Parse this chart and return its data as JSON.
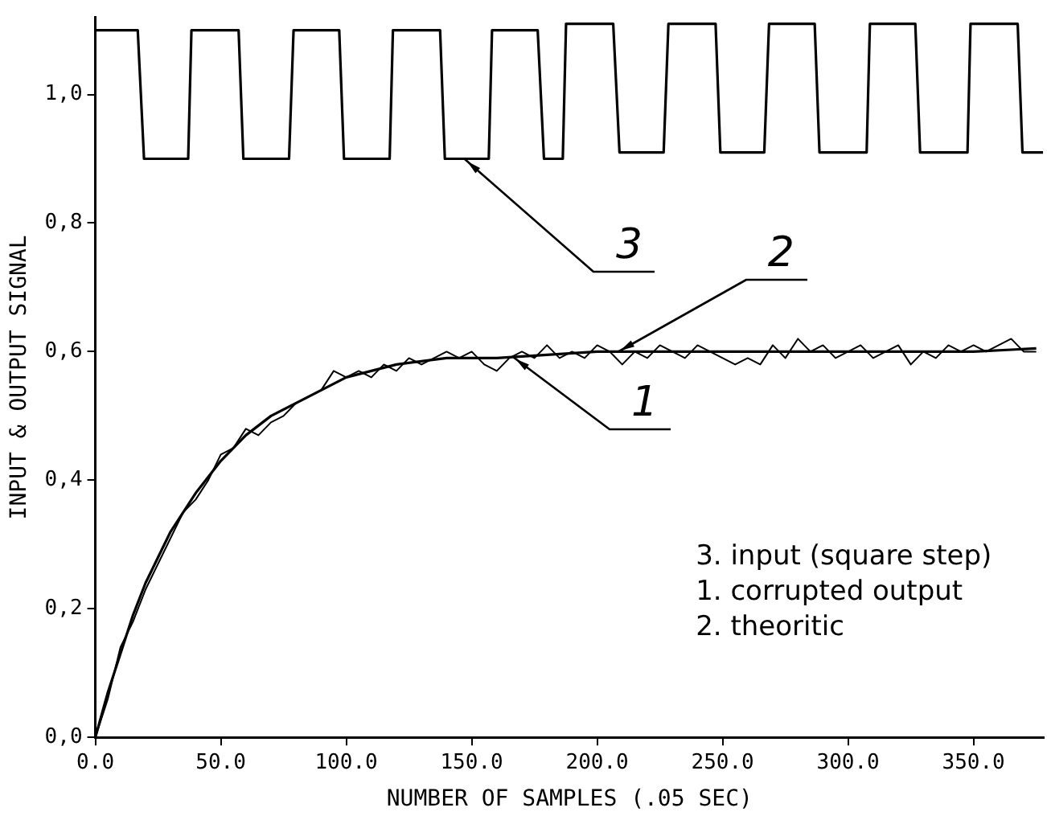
{
  "chart_data": {
    "type": "line",
    "xlabel": "NUMBER OF SAMPLES (.05 SEC)",
    "ylabel": "INPUT & OUTPUT SIGNAL",
    "xlim": [
      0,
      378
    ],
    "ylim": [
      0,
      1.12
    ],
    "xticks": [
      {
        "value": 0,
        "label": "0.0"
      },
      {
        "value": 50,
        "label": "50.0"
      },
      {
        "value": 100,
        "label": "100.0"
      },
      {
        "value": 150,
        "label": "150.0"
      },
      {
        "value": 200,
        "label": "200.0"
      },
      {
        "value": 250,
        "label": "250.0"
      },
      {
        "value": 300,
        "label": "300.0"
      },
      {
        "value": 350,
        "label": "350.0"
      }
    ],
    "yticks": [
      {
        "value": 0,
        "label": "0,0"
      },
      {
        "value": 0.2,
        "label": "0,2"
      },
      {
        "value": 0.4,
        "label": "0,4"
      },
      {
        "value": 0.6,
        "label": "0,6"
      },
      {
        "value": 0.8,
        "label": "0,8"
      },
      {
        "value": 1.0,
        "label": "1,0"
      }
    ],
    "grid": false,
    "legend": "right",
    "marker": "none",
    "line_style": "solid",
    "series": [
      {
        "name": "3",
        "color": "#000000",
        "x": [
          0,
          16.9,
          19.4,
          37.0,
          38.3,
          57.1,
          59.0,
          77.2,
          79.0,
          97.2,
          99.1,
          117.3,
          118.6,
          137.4,
          139.3,
          156.8,
          158.1,
          176.3,
          178.8,
          186.3,
          187.6,
          206.4,
          208.9,
          226.5,
          228.4,
          247.2,
          249.1,
          266.6,
          268.5,
          286.7,
          288.6,
          307.4,
          308.7,
          326.8,
          328.7,
          347.6,
          348.8,
          367.6,
          369.5,
          377.7
        ],
        "values": [
          1.1,
          1.1,
          0.9,
          0.9,
          1.1,
          1.1,
          0.9,
          0.9,
          1.1,
          1.1,
          0.9,
          0.9,
          1.1,
          1.1,
          0.9,
          0.9,
          1.1,
          1.1,
          0.9,
          0.9,
          1.11,
          1.11,
          0.91,
          0.91,
          1.11,
          1.11,
          0.91,
          0.91,
          1.11,
          1.11,
          0.91,
          0.91,
          1.11,
          1.11,
          0.91,
          0.91,
          1.11,
          1.11,
          0.91,
          0.91
        ]
      },
      {
        "name": "1",
        "color": "#000000",
        "x": [
          0,
          5,
          10,
          15,
          20,
          25,
          30,
          35,
          40,
          45,
          50,
          55,
          60,
          65,
          70,
          75,
          80,
          85,
          90,
          95,
          100,
          105,
          110,
          115,
          120,
          125,
          130,
          135,
          140,
          145,
          150,
          155,
          160,
          165,
          170,
          175,
          180,
          185,
          190,
          195,
          200,
          205,
          210,
          215,
          220,
          225,
          230,
          235,
          240,
          245,
          250,
          255,
          260,
          265,
          270,
          275,
          280,
          285,
          290,
          295,
          300,
          305,
          310,
          315,
          320,
          325,
          330,
          335,
          340,
          345,
          350,
          355,
          360,
          365,
          370,
          375
        ],
        "values": [
          0,
          0.06,
          0.14,
          0.18,
          0.23,
          0.27,
          0.31,
          0.35,
          0.37,
          0.4,
          0.44,
          0.45,
          0.48,
          0.47,
          0.49,
          0.5,
          0.52,
          0.53,
          0.54,
          0.57,
          0.56,
          0.57,
          0.56,
          0.58,
          0.57,
          0.59,
          0.58,
          0.59,
          0.6,
          0.59,
          0.6,
          0.58,
          0.57,
          0.59,
          0.6,
          0.59,
          0.61,
          0.59,
          0.6,
          0.59,
          0.61,
          0.6,
          0.58,
          0.6,
          0.59,
          0.61,
          0.6,
          0.59,
          0.61,
          0.6,
          0.59,
          0.58,
          0.59,
          0.58,
          0.61,
          0.59,
          0.62,
          0.6,
          0.61,
          0.59,
          0.6,
          0.61,
          0.59,
          0.6,
          0.61,
          0.58,
          0.6,
          0.59,
          0.61,
          0.6,
          0.61,
          0.6,
          0.61,
          0.62,
          0.6,
          0.6
        ]
      },
      {
        "name": "2",
        "color": "#000000",
        "x": [
          0,
          5,
          10,
          15,
          20,
          25,
          30,
          40,
          50,
          60,
          70,
          80,
          90,
          100,
          120,
          140,
          160,
          180,
          200,
          250,
          300,
          350,
          375
        ],
        "values": [
          0,
          0.07,
          0.13,
          0.19,
          0.24,
          0.28,
          0.32,
          0.38,
          0.43,
          0.47,
          0.5,
          0.52,
          0.54,
          0.56,
          0.58,
          0.59,
          0.59,
          0.595,
          0.6,
          0.6,
          0.6,
          0.6,
          0.605
        ]
      }
    ],
    "annotations": [
      "3. input (square step)",
      "1. corrupted output",
      "2. theoritic"
    ]
  }
}
